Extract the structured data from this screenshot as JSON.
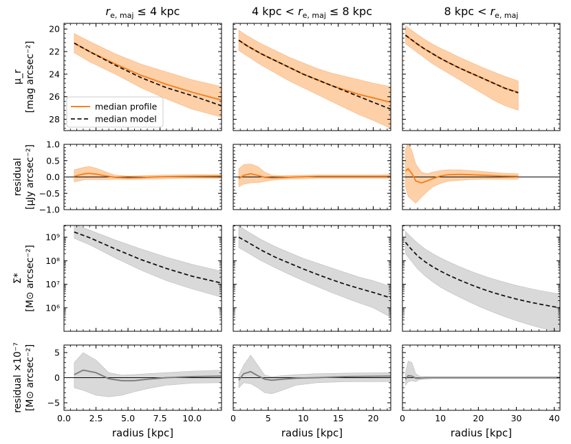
{
  "chart_data": {
    "type": "line",
    "columns": [
      {
        "title": "r_e,maj ≤ 4 kpc",
        "title_parts": {
          "sym": "r",
          "sub": "e, maj",
          "pre": "",
          "post": " ≤ 4 kpc"
        },
        "xlim": [
          0,
          12.3
        ],
        "xticks": [
          0.0,
          2.5,
          5.0,
          7.5,
          10.0
        ],
        "xtick_labels": [
          "0.0",
          "2.5",
          "5.0",
          "7.5",
          "10.0"
        ]
      },
      {
        "title": "4 kpc < r_e,maj ≤ 8 kpc",
        "title_parts": {
          "sym": "r",
          "sub": "e, maj",
          "pre": "4 kpc < ",
          "post": " ≤ 8 kpc"
        },
        "xlim": [
          0,
          22.5
        ],
        "xticks": [
          0,
          5,
          10,
          15,
          20
        ],
        "xtick_labels": [
          "0",
          "5",
          "10",
          "15",
          "20"
        ]
      },
      {
        "title": "8 kpc < r_e,maj",
        "title_parts": {
          "sym": "r",
          "sub": "e, maj",
          "pre": "8 kpc < ",
          "post": ""
        },
        "xlim": [
          0,
          41.5
        ],
        "xticks": [
          0,
          10,
          20,
          30,
          40
        ],
        "xtick_labels": [
          "0",
          "10",
          "20",
          "30",
          "40"
        ]
      }
    ],
    "xlabel": "radius [kpc]",
    "rows": [
      {
        "id": "mu",
        "ylabel_lines": [
          "μ_r",
          "[mag arcsec⁻²]"
        ],
        "ylim": [
          29,
          19.5
        ],
        "inverted": true,
        "yticks": [
          20,
          22,
          24,
          26,
          28
        ],
        "ytick_labels": [
          "20",
          "22",
          "24",
          "26",
          "28"
        ]
      },
      {
        "id": "res1",
        "ylabel_lines": [
          "residual",
          "[μJy arcsec⁻²]"
        ],
        "ylim": [
          -1.0,
          1.0
        ],
        "yticks": [
          -1.0,
          -0.5,
          0.0,
          0.5,
          1.0
        ],
        "ytick_labels": [
          "−1.0",
          "−0.5",
          "0.0",
          "0.5",
          "1.0"
        ]
      },
      {
        "id": "sigma",
        "ylabel_lines": [
          "Σ*",
          "[M⊙ arcsec⁻²]"
        ],
        "log": true,
        "ylim": [
          5.0,
          9.5
        ],
        "yticks": [
          6,
          7,
          8,
          9
        ],
        "ytick_labels": [
          "10⁶",
          "10⁷",
          "10⁸",
          "10⁹"
        ]
      },
      {
        "id": "res2",
        "ylabel_lines": [
          "residual ×10⁻⁷",
          "[M⊙ arcsec⁻²]"
        ],
        "ylim": [
          -6.5,
          6.5
        ],
        "yticks": [
          -5,
          0,
          5
        ],
        "ytick_labels": [
          "−5",
          "0",
          "5"
        ]
      }
    ],
    "legend": {
      "position": "bottom-left",
      "entries": [
        "median profile",
        "median model"
      ]
    },
    "colors": {
      "profile": "#f58220",
      "band_orange": "#fdd0a8",
      "model": "#111111",
      "gray_line": "#7f7f7f",
      "band_gray": "#d9d9d9",
      "zero": "#000000"
    },
    "series": [
      [
        {
          "x": [
            0.8,
            2,
            4,
            6,
            8,
            10,
            12.3
          ],
          "profile": [
            21.25,
            22.0,
            23.1,
            24.1,
            24.9,
            25.6,
            26.3
          ],
          "model": [
            21.25,
            22.0,
            23.2,
            24.3,
            25.2,
            25.9,
            26.8
          ],
          "band_upper": [
            22.1,
            22.9,
            24.0,
            25.2,
            26.2,
            27.1,
            27.8
          ],
          "band_lower": [
            20.4,
            21.1,
            22.2,
            23.1,
            23.8,
            24.5,
            25.1
          ]
        },
        {
          "x": [
            0.8,
            1.2,
            1.6,
            2.0,
            2.5,
            3.0,
            3.5,
            4.0,
            5.0,
            6.0,
            7.0,
            8.0,
            10.0,
            12.3
          ],
          "profile": [
            0.02,
            0.06,
            0.1,
            0.11,
            0.09,
            0.05,
            0.02,
            -0.01,
            -0.03,
            -0.02,
            0.0,
            0.01,
            0.02,
            0.03
          ],
          "band_upper": [
            0.22,
            0.26,
            0.3,
            0.32,
            0.27,
            0.2,
            0.12,
            0.06,
            0.03,
            0.04,
            0.05,
            0.06,
            0.07,
            0.07
          ],
          "band_lower": [
            -0.15,
            -0.12,
            -0.08,
            -0.08,
            -0.08,
            -0.08,
            -0.08,
            -0.07,
            -0.08,
            -0.07,
            -0.06,
            -0.05,
            -0.04,
            -0.04
          ]
        },
        {
          "x": [
            0.8,
            2,
            4,
            6,
            8,
            10,
            12.3
          ],
          "model": [
            9.22,
            8.98,
            8.5,
            8.05,
            7.67,
            7.34,
            7.05
          ],
          "band_upper": [
            9.55,
            9.3,
            8.88,
            8.5,
            8.15,
            7.85,
            7.55
          ],
          "band_lower": [
            8.95,
            8.68,
            8.12,
            7.6,
            7.15,
            6.8,
            6.45
          ]
        },
        {
          "x": [
            0.8,
            1.5,
            2.5,
            3.5,
            4.5,
            5.5,
            6.5,
            8,
            10,
            12.3
          ],
          "profile": [
            0.6,
            1.5,
            1.0,
            -0.2,
            -0.6,
            -0.6,
            -0.3,
            0.0,
            0.2,
            0.3
          ],
          "band_upper": [
            3.0,
            5.0,
            3.5,
            1.0,
            0.5,
            0.6,
            0.8,
            1.0,
            1.3,
            1.5
          ],
          "band_lower": [
            -2.0,
            -2.5,
            -3.5,
            -3.8,
            -3.5,
            -2.8,
            -2.2,
            -1.5,
            -1.1,
            -1.0
          ]
        }
      ],
      [
        {
          "x": [
            0.8,
            2,
            4,
            6,
            8,
            10,
            12,
            14,
            16,
            18,
            20,
            22.5
          ],
          "profile": [
            21.0,
            21.5,
            22.2,
            22.8,
            23.4,
            24.0,
            24.5,
            25.0,
            25.4,
            25.8,
            26.1,
            26.5
          ],
          "model": [
            21.0,
            21.5,
            22.2,
            22.8,
            23.4,
            24.0,
            24.5,
            25.0,
            25.5,
            26.0,
            26.5,
            27.1
          ],
          "band_upper": [
            21.9,
            22.4,
            23.2,
            23.9,
            24.6,
            25.2,
            25.8,
            26.4,
            27.0,
            27.6,
            28.1,
            28.8
          ],
          "band_lower": [
            20.1,
            20.6,
            21.3,
            21.9,
            22.5,
            23.0,
            23.5,
            23.9,
            24.2,
            24.5,
            24.8,
            25.1
          ]
        },
        {
          "x": [
            0.8,
            1.5,
            2.5,
            3.5,
            4.5,
            5.5,
            7,
            9,
            12,
            16,
            20,
            22.5
          ],
          "profile": [
            -0.05,
            0.05,
            0.1,
            0.05,
            -0.01,
            -0.03,
            -0.02,
            0.0,
            0.02,
            0.02,
            0.02,
            0.02
          ],
          "band_upper": [
            0.25,
            0.38,
            0.4,
            0.32,
            0.15,
            0.06,
            0.04,
            0.05,
            0.06,
            0.06,
            0.06,
            0.07
          ],
          "band_lower": [
            -0.3,
            -0.22,
            -0.18,
            -0.17,
            -0.14,
            -0.1,
            -0.07,
            -0.06,
            -0.04,
            -0.04,
            -0.04,
            -0.04
          ]
        },
        {
          "x": [
            0.8,
            2,
            4,
            6,
            8,
            10,
            12,
            14,
            16,
            18,
            20,
            22.5
          ],
          "model": [
            9.0,
            8.8,
            8.45,
            8.15,
            7.9,
            7.65,
            7.42,
            7.2,
            7.0,
            6.82,
            6.65,
            6.42
          ],
          "band_upper": [
            9.5,
            9.25,
            8.9,
            8.6,
            8.35,
            8.1,
            7.9,
            7.7,
            7.5,
            7.3,
            7.15,
            6.9
          ],
          "band_lower": [
            8.55,
            8.35,
            8.0,
            7.7,
            7.42,
            7.15,
            6.9,
            6.65,
            6.42,
            6.2,
            6.0,
            5.6
          ]
        },
        {
          "x": [
            0.8,
            1.5,
            2.5,
            3.5,
            4.5,
            5.5,
            7,
            9,
            12,
            16,
            22.5
          ],
          "profile": [
            -0.5,
            0.8,
            1.2,
            0.4,
            -0.3,
            -0.5,
            -0.3,
            -0.1,
            0.0,
            0.2,
            0.3
          ],
          "band_upper": [
            0.5,
            2.5,
            4.5,
            2.5,
            0.5,
            0.2,
            0.4,
            0.6,
            0.8,
            0.9,
            1.0
          ],
          "band_lower": [
            -2.0,
            -1.0,
            -1.2,
            -2.0,
            -3.0,
            -3.2,
            -2.5,
            -1.5,
            -1.0,
            -0.8,
            -0.8
          ]
        }
      ],
      [
        {
          "x": [
            0.8,
            2,
            4,
            6,
            8,
            10,
            12,
            15,
            18,
            21,
            24,
            27,
            30.5
          ],
          "profile": [
            20.55,
            20.85,
            21.35,
            21.8,
            22.2,
            22.6,
            22.95,
            23.45,
            23.9,
            24.35,
            24.8,
            25.25,
            25.6
          ],
          "model": [
            20.55,
            20.85,
            21.35,
            21.8,
            22.2,
            22.6,
            22.95,
            23.45,
            23.9,
            24.35,
            24.8,
            25.25,
            25.65
          ],
          "band_upper": [
            21.3,
            21.6,
            22.1,
            22.6,
            23.1,
            23.5,
            23.9,
            24.5,
            25.1,
            25.7,
            26.3,
            26.8,
            27.2
          ],
          "band_lower": [
            19.7,
            20.0,
            20.5,
            20.95,
            21.35,
            21.7,
            22.0,
            22.5,
            22.95,
            23.4,
            23.8,
            24.2,
            24.6
          ]
        },
        {
          "x": [
            0.8,
            1.5,
            2.5,
            3.5,
            5,
            6.5,
            8,
            10,
            12,
            15,
            18,
            22,
            26,
            30.5
          ],
          "profile": [
            0.18,
            0.25,
            0.1,
            -0.12,
            -0.18,
            -0.12,
            -0.05,
            0.03,
            0.07,
            0.08,
            0.07,
            0.05,
            0.03,
            0.02
          ],
          "band_upper": [
            0.85,
            1.05,
            0.8,
            0.4,
            0.15,
            0.1,
            0.15,
            0.2,
            0.22,
            0.22,
            0.2,
            0.16,
            0.12,
            0.1
          ],
          "band_lower": [
            -0.3,
            -0.6,
            -0.7,
            -0.8,
            -0.62,
            -0.45,
            -0.3,
            -0.2,
            -0.13,
            -0.1,
            -0.08,
            -0.07,
            -0.07,
            -0.07
          ]
        },
        {
          "x": [
            0.8,
            2,
            4,
            6,
            8,
            10,
            12,
            15,
            18,
            21,
            24,
            27,
            30,
            33,
            36,
            39,
            41.5
          ],
          "model": [
            8.78,
            8.55,
            8.2,
            7.95,
            7.74,
            7.56,
            7.4,
            7.18,
            6.98,
            6.8,
            6.64,
            6.5,
            6.37,
            6.26,
            6.16,
            6.07,
            6.0
          ],
          "band_upper": [
            9.25,
            9.05,
            8.75,
            8.5,
            8.3,
            8.12,
            7.97,
            7.75,
            7.55,
            7.38,
            7.22,
            7.08,
            6.95,
            6.84,
            6.74,
            6.65,
            6.58
          ],
          "band_lower": [
            8.3,
            8.05,
            7.65,
            7.35,
            7.1,
            6.88,
            6.7,
            6.45,
            6.22,
            6.0,
            5.8,
            5.62,
            5.45,
            5.3,
            5.16,
            5.04,
            4.95
          ]
        },
        {
          "x": [
            0.8,
            1.5,
            2.5,
            3.5,
            4.5,
            6,
            8,
            12,
            20,
            30,
            41.5
          ],
          "profile": [
            -0.3,
            0.4,
            0.3,
            -0.1,
            -0.1,
            0.0,
            0.0,
            0.0,
            0.0,
            0.0,
            0.0
          ],
          "band_upper": [
            1.0,
            3.3,
            3.0,
            0.8,
            0.3,
            0.2,
            0.2,
            0.2,
            0.2,
            0.2,
            0.2
          ],
          "band_lower": [
            -1.5,
            -0.8,
            -0.6,
            -0.8,
            -0.4,
            -0.3,
            -0.2,
            -0.2,
            -0.2,
            -0.2,
            -0.2
          ]
        }
      ]
    ]
  }
}
